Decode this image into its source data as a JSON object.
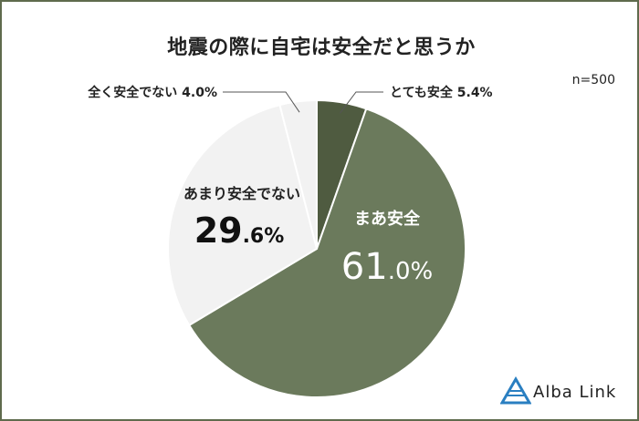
{
  "title": "地震の際に自宅は安全だと思うか",
  "sample_size": "n=500",
  "brand": "Alba Link",
  "chart_data": {
    "type": "pie",
    "title": "地震の際に自宅は安全だと思うか",
    "slices": [
      {
        "label": "とても安全",
        "value": 5.4,
        "display": "5.4%",
        "color": "#4f5b40"
      },
      {
        "label": "まあ安全",
        "value": 61.0,
        "display_int": "61",
        "display_dec": ".0%",
        "color": "#6b7a5c"
      },
      {
        "label": "あまり安全でない",
        "value": 29.6,
        "display_int": "29",
        "display_dec": ".6%",
        "color": "#f2f2f2"
      },
      {
        "label": "全く安全でない",
        "value": 4.0,
        "display": "4.0%",
        "color": "#f2f2f2"
      }
    ]
  },
  "colors": {
    "frame": "#5f6b4d",
    "slice_border": "#ffffff",
    "leader": "#555555",
    "logo_blue": "#2a7fc1"
  }
}
